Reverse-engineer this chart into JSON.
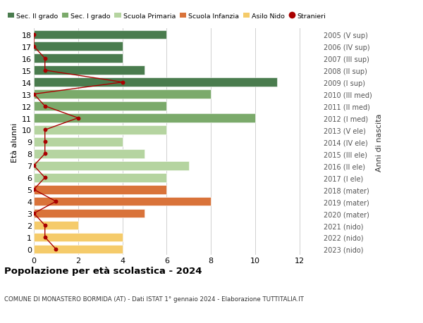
{
  "ages": [
    18,
    17,
    16,
    15,
    14,
    13,
    12,
    11,
    10,
    9,
    8,
    7,
    6,
    5,
    4,
    3,
    2,
    1,
    0
  ],
  "bar_values": [
    6,
    4,
    4,
    5,
    11,
    8,
    6,
    10,
    6,
    4,
    5,
    7,
    6,
    6,
    8,
    5,
    2,
    4,
    4
  ],
  "bar_colors": [
    "#4a7c4e",
    "#4a7c4e",
    "#4a7c4e",
    "#4a7c4e",
    "#4a7c4e",
    "#7baa6b",
    "#7baa6b",
    "#7baa6b",
    "#b5d4a0",
    "#b5d4a0",
    "#b5d4a0",
    "#b5d4a0",
    "#b5d4a0",
    "#d9733a",
    "#d9733a",
    "#d9733a",
    "#f5cb6a",
    "#f5cb6a",
    "#f5cb6a"
  ],
  "stranieri_x": [
    0,
    0,
    0.5,
    0.5,
    4,
    0,
    0.5,
    2,
    0.5,
    0.5,
    0.5,
    0,
    0.5,
    0,
    1,
    0,
    0.5,
    0.5,
    1
  ],
  "right_labels": [
    "2005 (V sup)",
    "2006 (IV sup)",
    "2007 (III sup)",
    "2008 (II sup)",
    "2009 (I sup)",
    "2010 (III med)",
    "2011 (II med)",
    "2012 (I med)",
    "2013 (V ele)",
    "2014 (IV ele)",
    "2015 (III ele)",
    "2016 (II ele)",
    "2017 (I ele)",
    "2018 (mater)",
    "2019 (mater)",
    "2020 (mater)",
    "2021 (nido)",
    "2022 (nido)",
    "2023 (nido)"
  ],
  "legend_labels": [
    "Sec. II grado",
    "Sec. I grado",
    "Scuola Primaria",
    "Scuola Infanzia",
    "Asilo Nido",
    "Stranieri"
  ],
  "legend_colors": [
    "#4a7c4e",
    "#7baa6b",
    "#b5d4a0",
    "#d9733a",
    "#f5cb6a",
    "#cc0000"
  ],
  "ylabel_left": "Età alunni",
  "ylabel_right": "Anni di nascita",
  "title": "Popolazione per età scolastica - 2024",
  "subtitle": "COMUNE DI MONASTERO BORMIDA (AT) - Dati ISTAT 1° gennaio 2024 - Elaborazione TUTTITALIA.IT",
  "xlim": [
    0,
    13
  ],
  "xticks": [
    0,
    2,
    4,
    6,
    8,
    10,
    12
  ],
  "bg_color": "#ffffff",
  "grid_color": "#d0d0d0",
  "bar_height": 0.75,
  "stranieri_color": "#aa0000"
}
